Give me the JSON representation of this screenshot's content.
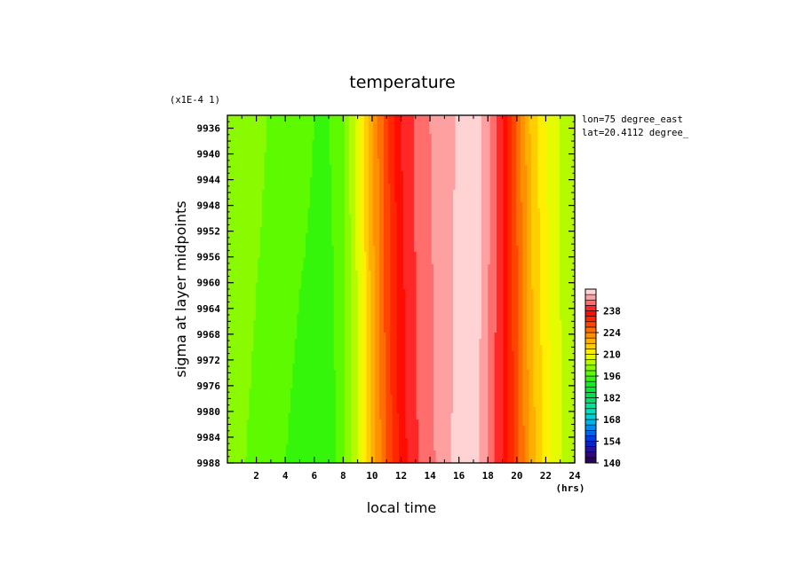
{
  "chart_data": {
    "type": "heatmap",
    "title": "temperature",
    "xlabel": "local time",
    "ylabel": "sigma at layer midpoints",
    "x_unit": "(hrs)",
    "y_scale_note": "(x1E-4 1)",
    "annotations": [
      "lon=75 degree_east",
      "lat=20.4112 degree_"
    ],
    "xlim": [
      0,
      24
    ],
    "ylim": [
      9988,
      9934
    ],
    "x_ticks": [
      "2",
      "4",
      "6",
      "8",
      "10",
      "12",
      "14",
      "16",
      "18",
      "20",
      "22",
      "24"
    ],
    "y_ticks": [
      "9936",
      "9940",
      "9944",
      "9948",
      "9952",
      "9956",
      "9960",
      "9964",
      "9968",
      "9972",
      "9976",
      "9980",
      "9984",
      "9988"
    ],
    "colorbar": {
      "min": 140,
      "max": 252,
      "step": 3.5,
      "labels": [
        "140",
        "154",
        "168",
        "182",
        "196",
        "210",
        "224",
        "238"
      ]
    },
    "values_by_hour": [
      {
        "hour": 0,
        "top": 203,
        "bottom": 203
      },
      {
        "hour": 1,
        "top": 203,
        "bottom": 200
      },
      {
        "hour": 2,
        "top": 201,
        "bottom": 198
      },
      {
        "hour": 3,
        "top": 199,
        "bottom": 197
      },
      {
        "hour": 4,
        "top": 198,
        "bottom": 196
      },
      {
        "hour": 5,
        "top": 197,
        "bottom": 195
      },
      {
        "hour": 6,
        "top": 196,
        "bottom": 195
      },
      {
        "hour": 7,
        "top": 196,
        "bottom": 193
      },
      {
        "hour": 8,
        "top": 199,
        "bottom": 199
      },
      {
        "hour": 9,
        "top": 208,
        "bottom": 206
      },
      {
        "hour": 10,
        "top": 220,
        "bottom": 218
      },
      {
        "hour": 11,
        "top": 230,
        "bottom": 228
      },
      {
        "hour": 12,
        "top": 238,
        "bottom": 236
      },
      {
        "hour": 13,
        "top": 242,
        "bottom": 241
      },
      {
        "hour": 14,
        "top": 245,
        "bottom": 244
      },
      {
        "hour": 15,
        "top": 247,
        "bottom": 247
      },
      {
        "hour": 16,
        "top": 249,
        "bottom": 250
      },
      {
        "hour": 17,
        "top": 252,
        "bottom": 251
      },
      {
        "hour": 18,
        "top": 246,
        "bottom": 245
      },
      {
        "hour": 19,
        "top": 238,
        "bottom": 238
      },
      {
        "hour": 20,
        "top": 227,
        "bottom": 229
      },
      {
        "hour": 21,
        "top": 216,
        "bottom": 219
      },
      {
        "hour": 22,
        "top": 210,
        "bottom": 212
      },
      {
        "hour": 23,
        "top": 206,
        "bottom": 207
      },
      {
        "hour": 24,
        "top": 203,
        "bottom": 203
      }
    ]
  }
}
